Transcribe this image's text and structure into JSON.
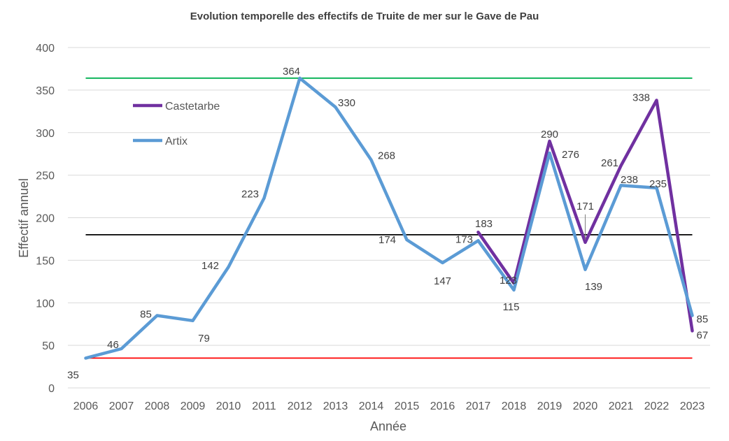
{
  "chart_data": {
    "type": "line",
    "title": "Evolution temporelle des effectifs de Truite de mer sur le Gave de Pau",
    "xlabel": "Année",
    "ylabel": "Effectif annuel",
    "ylim": [
      0,
      400
    ],
    "yticks": [
      0,
      50,
      100,
      150,
      200,
      250,
      300,
      350,
      400
    ],
    "grid": true,
    "legend_position": "top-left",
    "categories": [
      "2006",
      "2007",
      "2008",
      "2009",
      "2010",
      "2011",
      "2012",
      "2013",
      "2014",
      "2015",
      "2016",
      "2017",
      "2018",
      "2019",
      "2020",
      "2021",
      "2022",
      "2023"
    ],
    "series": [
      {
        "name": "Castetarbe",
        "color": "#7030a0",
        "values": [
          null,
          null,
          null,
          null,
          null,
          null,
          null,
          null,
          null,
          null,
          null,
          183,
          123,
          290,
          171,
          261,
          338,
          67
        ]
      },
      {
        "name": "Artix",
        "color": "#5b9bd5",
        "values": [
          35,
          46,
          85,
          79,
          142,
          223,
          364,
          330,
          268,
          174,
          147,
          173,
          115,
          276,
          139,
          238,
          235,
          85
        ]
      }
    ],
    "reference_lines": [
      {
        "value": 364,
        "color": "#00b050"
      },
      {
        "value": 180,
        "color": "#000000"
      },
      {
        "value": 35,
        "color": "#ff0000"
      }
    ],
    "data_labels": [
      {
        "series": "Artix",
        "category": "2006",
        "text": "35"
      },
      {
        "series": "Artix",
        "category": "2007",
        "text": "46"
      },
      {
        "series": "Artix",
        "category": "2008",
        "text": "85"
      },
      {
        "series": "Artix",
        "category": "2009",
        "text": "79"
      },
      {
        "series": "Artix",
        "category": "2010",
        "text": "142"
      },
      {
        "series": "Artix",
        "category": "2011",
        "text": "223"
      },
      {
        "series": "Artix",
        "category": "2012",
        "text": "364"
      },
      {
        "series": "Artix",
        "category": "2013",
        "text": "330"
      },
      {
        "series": "Artix",
        "category": "2014",
        "text": "268"
      },
      {
        "series": "Artix",
        "category": "2015",
        "text": "174"
      },
      {
        "series": "Artix",
        "category": "2016",
        "text": "147"
      },
      {
        "series": "Artix",
        "category": "2017",
        "text": "173"
      },
      {
        "series": "Castetarbe",
        "category": "2017",
        "text": "183"
      },
      {
        "series": "Castetarbe",
        "category": "2018",
        "text": "123"
      },
      {
        "series": "Artix",
        "category": "2018",
        "text": "115"
      },
      {
        "series": "Castetarbe",
        "category": "2019",
        "text": "290"
      },
      {
        "series": "Artix",
        "category": "2019",
        "text": "276"
      },
      {
        "series": "Castetarbe",
        "category": "2020",
        "text": "171"
      },
      {
        "series": "Artix",
        "category": "2020",
        "text": "139"
      },
      {
        "series": "Castetarbe",
        "category": "2021",
        "text": "261"
      },
      {
        "series": "Artix",
        "category": "2021",
        "text": "238"
      },
      {
        "series": "Castetarbe",
        "category": "2022",
        "text": "338"
      },
      {
        "series": "Artix",
        "category": "2022",
        "text": "235"
      },
      {
        "series": "Artix",
        "category": "2023",
        "text": "85"
      },
      {
        "series": "Castetarbe",
        "category": "2023",
        "text": "67"
      }
    ]
  }
}
